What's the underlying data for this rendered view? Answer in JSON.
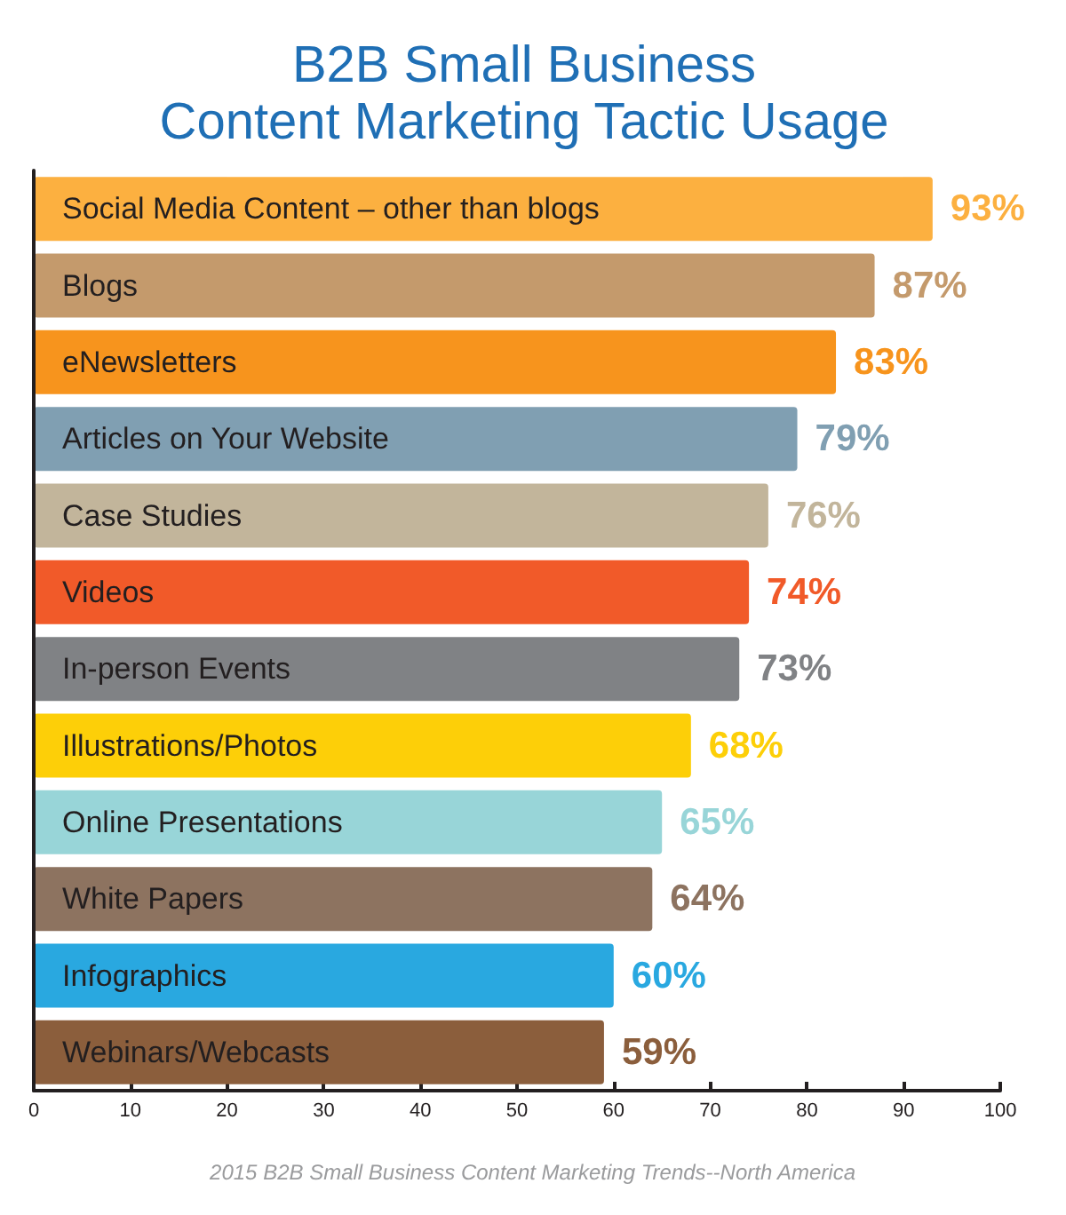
{
  "chart_data": {
    "type": "bar",
    "orientation": "horizontal",
    "title": "B2B Small Business\nContent Marketing Tactic Usage",
    "categories": [
      "Social Media Content – other than blogs",
      "Blogs",
      "eNewsletters",
      "Articles on Your Website",
      "Case Studies",
      "Videos",
      "In-person Events",
      "Illustrations/Photos",
      "Online Presentations",
      "White Papers",
      "Infographics",
      "Webinars/Webcasts"
    ],
    "values": [
      93,
      87,
      83,
      79,
      76,
      74,
      73,
      68,
      65,
      64,
      60,
      59
    ],
    "value_labels": [
      "93%",
      "87%",
      "83%",
      "79%",
      "76%",
      "74%",
      "73%",
      "68%",
      "65%",
      "64%",
      "60%",
      "59%"
    ],
    "colors": [
      "#fcb040",
      "#c49a6c",
      "#f7941d",
      "#809fb2",
      "#c2b59b",
      "#f15a29",
      "#808285",
      "#fdcf08",
      "#98d5d8",
      "#8d7360",
      "#29a8e0",
      "#8b5e3c"
    ],
    "xlim": [
      0,
      100
    ],
    "xticks": [
      0,
      10,
      20,
      30,
      40,
      50,
      60,
      70,
      80,
      90,
      100
    ],
    "annotations": [
      "2015 B2B Small Business Content Marketing Trends--North America"
    ]
  }
}
